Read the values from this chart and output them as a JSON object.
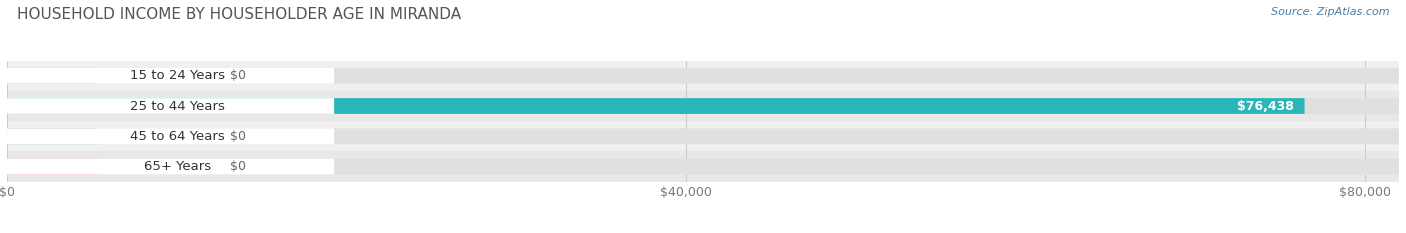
{
  "title": "HOUSEHOLD INCOME BY HOUSEHOLDER AGE IN MIRANDA",
  "source": "Source: ZipAtlas.com",
  "categories": [
    "15 to 24 Years",
    "25 to 44 Years",
    "45 to 64 Years",
    "65+ Years"
  ],
  "values": [
    0,
    76438,
    0,
    0
  ],
  "bar_colors": [
    "#c9a0c8",
    "#2ab5b8",
    "#a8a8d8",
    "#f4a0b8"
  ],
  "bar_bg_color": "#e0e0e0",
  "row_bg_colors": [
    "#f0f0f0",
    "#e8e8e8"
  ],
  "xlim_max": 82000,
  "xticks": [
    0,
    40000,
    80000
  ],
  "xticklabels": [
    "$0",
    "$40,000",
    "$80,000"
  ],
  "value_labels": [
    "$0",
    "$76,438",
    "$0",
    "$0"
  ],
  "title_fontsize": 11,
  "tick_fontsize": 9,
  "bar_label_fontsize": 9,
  "category_fontsize": 9.5,
  "bar_height": 0.52,
  "background_color": "#ffffff",
  "source_color": "#4a7fa5",
  "title_color": "#555555",
  "label_bg_color": "#ffffff"
}
